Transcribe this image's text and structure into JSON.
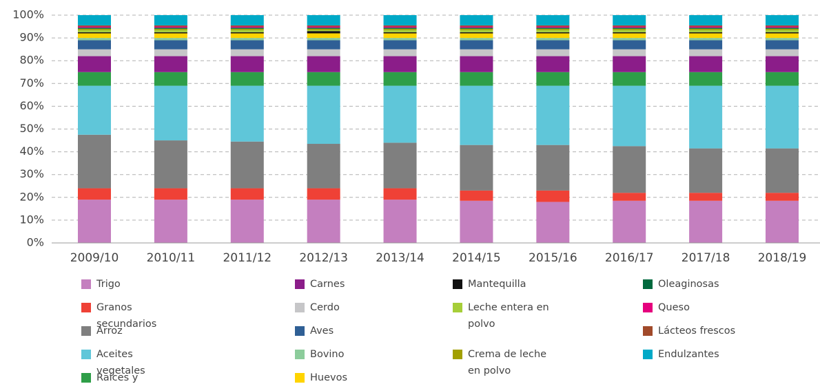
{
  "chart_data": {
    "type": "stacked_bar",
    "categories": [
      "2009/10",
      "2010/11",
      "2011/12",
      "2012/13",
      "2013/14",
      "2014/15",
      "2015/16",
      "2016/17",
      "2017/18",
      "2018/19"
    ],
    "ylim": [
      0,
      100
    ],
    "yticks": [
      {
        "value": 0,
        "label": "0%"
      },
      {
        "value": 10,
        "label": "10%"
      },
      {
        "value": 20,
        "label": "20%"
      },
      {
        "value": 30,
        "label": "30%"
      },
      {
        "value": 40,
        "label": "40%"
      },
      {
        "value": 50,
        "label": "50%"
      },
      {
        "value": 60,
        "label": "60%"
      },
      {
        "value": 70,
        "label": "70%"
      },
      {
        "value": 80,
        "label": "80%"
      },
      {
        "value": 90,
        "label": "90%"
      },
      {
        "value": 100,
        "label": "100%"
      }
    ],
    "grid": true,
    "series": [
      {
        "name": "Trigo",
        "color": "#c47fbf",
        "values": [
          19,
          19,
          19,
          19,
          19,
          18.5,
          18,
          18.5,
          18.5,
          18.5
        ]
      },
      {
        "name": "Granos secundarios",
        "color": "#ef4136",
        "values": [
          5,
          5,
          5,
          5,
          5,
          4.5,
          5,
          3.5,
          3.5,
          3.5
        ]
      },
      {
        "name": "Arroz",
        "color": "#7f7f7f",
        "values": [
          23.5,
          21,
          20.5,
          19.5,
          20,
          20,
          20,
          20.5,
          19.5,
          19.5
        ]
      },
      {
        "name": "Aceites vegetales",
        "color": "#5fc6d9",
        "values": [
          21.5,
          24,
          24.5,
          25.5,
          25,
          26,
          26,
          26.5,
          27.5,
          27.5
        ]
      },
      {
        "name": "Raíces y tubérculos",
        "color": "#2e9e48",
        "values": [
          6,
          6,
          6,
          6,
          6,
          6,
          6,
          6,
          6,
          6
        ]
      },
      {
        "name": "Carnes",
        "color": "#8b1d89",
        "values": [
          7,
          7,
          7,
          7,
          7,
          7,
          7,
          7,
          7,
          7
        ]
      },
      {
        "name": "Cerdo",
        "color": "#c6c6c8",
        "values": [
          3,
          3,
          3,
          3,
          3,
          3,
          3,
          3,
          3,
          3
        ]
      },
      {
        "name": "Aves",
        "color": "#2f5f95",
        "values": [
          4,
          4,
          4,
          4,
          4,
          4,
          4,
          4,
          4,
          4
        ]
      },
      {
        "name": "Bovino",
        "color": "#8ccc9b",
        "values": [
          1,
          1,
          1,
          1,
          1,
          1,
          1,
          1,
          1,
          1
        ]
      },
      {
        "name": "Huevos",
        "color": "#ffd400",
        "values": [
          2,
          2,
          2,
          2,
          2,
          2,
          2,
          2,
          2,
          2
        ]
      },
      {
        "name": "Mantequilla",
        "color": "#111111",
        "values": [
          0.5,
          0.5,
          0.5,
          1,
          0.5,
          0.5,
          0.5,
          0.5,
          0.5,
          0.5
        ]
      },
      {
        "name": "Leche entera en polvo",
        "color": "#a6ce39",
        "values": [
          1,
          1,
          1,
          0.5,
          1,
          1,
          1,
          1,
          1,
          1
        ]
      },
      {
        "name": "Crema de leche en polvo",
        "color": "#a2a000",
        "values": [
          0.5,
          0.5,
          0.5,
          0.5,
          0.5,
          0.5,
          0.5,
          0.5,
          0.5,
          0.5
        ]
      },
      {
        "name": "Oleaginosas",
        "color": "#00693e",
        "values": [
          0.5,
          0.5,
          0.5,
          0.5,
          0.5,
          0.5,
          0.5,
          0.5,
          0.5,
          0.5
        ]
      },
      {
        "name": "Queso",
        "color": "#e5007d",
        "values": [
          0.5,
          0.5,
          0.5,
          0.5,
          0.5,
          0.5,
          0.5,
          0.5,
          0.5,
          0.5
        ]
      },
      {
        "name": "Lácteos frescos",
        "color": "#a14a2a",
        "values": [
          0.5,
          0.5,
          0.5,
          0.5,
          0.5,
          0.5,
          0.5,
          0.5,
          0.5,
          0.5
        ]
      },
      {
        "name": "Endulzantes",
        "color": "#00a9c7",
        "values": [
          4.5,
          4.5,
          4.5,
          4.5,
          4.5,
          4.5,
          4.5,
          4.5,
          4.5,
          4.5
        ]
      }
    ]
  }
}
